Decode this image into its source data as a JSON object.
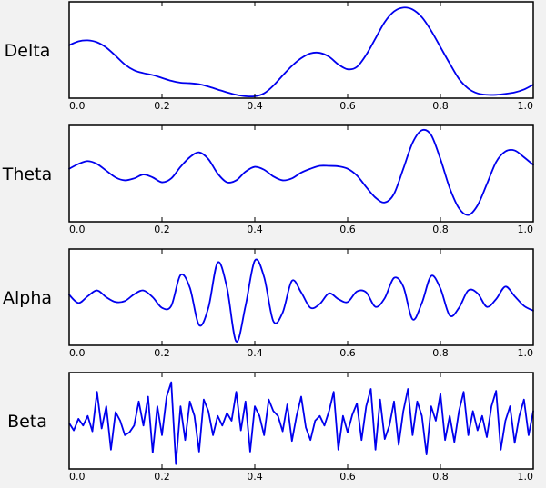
{
  "chart_data": [
    {
      "type": "line",
      "label": "Delta",
      "xlim": [
        0.0,
        1.0
      ],
      "ylim": [
        -1.0,
        1.0
      ],
      "xticks": [
        "0.0",
        "0.2",
        "0.4",
        "0.6",
        "0.8",
        "1.0"
      ],
      "yticks": [],
      "series": [
        {
          "color": "#0000ee",
          "x": [
            0.0,
            0.02,
            0.04,
            0.06,
            0.08,
            0.1,
            0.12,
            0.14,
            0.16,
            0.18,
            0.2,
            0.22,
            0.24,
            0.26,
            0.28,
            0.3,
            0.32,
            0.34,
            0.36,
            0.38,
            0.4,
            0.42,
            0.44,
            0.46,
            0.48,
            0.5,
            0.52,
            0.54,
            0.56,
            0.58,
            0.6,
            0.62,
            0.64,
            0.66,
            0.68,
            0.7,
            0.72,
            0.74,
            0.76,
            0.78,
            0.8,
            0.82,
            0.84,
            0.86,
            0.88,
            0.9,
            0.92,
            0.94,
            0.96,
            0.98,
            1.0
          ],
          "y": [
            0.1,
            0.18,
            0.2,
            0.16,
            0.05,
            -0.12,
            -0.3,
            -0.42,
            -0.48,
            -0.52,
            -0.58,
            -0.64,
            -0.68,
            -0.69,
            -0.71,
            -0.76,
            -0.82,
            -0.88,
            -0.93,
            -0.96,
            -0.96,
            -0.9,
            -0.74,
            -0.53,
            -0.33,
            -0.17,
            -0.07,
            -0.06,
            -0.14,
            -0.3,
            -0.4,
            -0.35,
            -0.1,
            0.24,
            0.58,
            0.8,
            0.88,
            0.84,
            0.68,
            0.4,
            0.06,
            -0.28,
            -0.6,
            -0.8,
            -0.9,
            -0.93,
            -0.93,
            -0.91,
            -0.88,
            -0.82,
            -0.72
          ]
        }
      ]
    },
    {
      "type": "line",
      "label": "Theta",
      "xlim": [
        0.0,
        1.0
      ],
      "ylim": [
        -1.0,
        1.0
      ],
      "xticks": [
        "0.0",
        "0.2",
        "0.4",
        "0.6",
        "0.8",
        "1.0"
      ],
      "yticks": [],
      "series": [
        {
          "color": "#0000ee",
          "x": [
            0.0,
            0.02,
            0.04,
            0.06,
            0.08,
            0.1,
            0.12,
            0.14,
            0.16,
            0.18,
            0.2,
            0.22,
            0.24,
            0.26,
            0.28,
            0.3,
            0.32,
            0.34,
            0.36,
            0.38,
            0.4,
            0.42,
            0.44,
            0.46,
            0.48,
            0.5,
            0.52,
            0.54,
            0.56,
            0.58,
            0.6,
            0.62,
            0.64,
            0.66,
            0.68,
            0.7,
            0.72,
            0.74,
            0.76,
            0.78,
            0.8,
            0.82,
            0.84,
            0.86,
            0.88,
            0.9,
            0.92,
            0.94,
            0.96,
            0.98,
            1.0
          ],
          "y": [
            0.1,
            0.2,
            0.26,
            0.2,
            0.06,
            -0.08,
            -0.14,
            -0.1,
            -0.02,
            -0.08,
            -0.18,
            -0.1,
            0.14,
            0.34,
            0.44,
            0.3,
            0.0,
            -0.18,
            -0.14,
            0.04,
            0.14,
            0.08,
            -0.06,
            -0.14,
            -0.1,
            0.02,
            0.1,
            0.16,
            0.16,
            0.15,
            0.1,
            -0.04,
            -0.28,
            -0.5,
            -0.6,
            -0.42,
            0.1,
            0.64,
            0.9,
            0.8,
            0.3,
            -0.3,
            -0.72,
            -0.86,
            -0.66,
            -0.22,
            0.24,
            0.46,
            0.48,
            0.34,
            0.18
          ]
        }
      ]
    },
    {
      "type": "line",
      "label": "Alpha",
      "xlim": [
        0.0,
        1.0
      ],
      "ylim": [
        -1.0,
        1.0
      ],
      "xticks": [
        "0.0",
        "0.2",
        "0.4",
        "0.6",
        "0.8",
        "1.0"
      ],
      "yticks": [],
      "series": [
        {
          "color": "#0000ee",
          "x": [
            0.0,
            0.02,
            0.04,
            0.06,
            0.08,
            0.1,
            0.12,
            0.14,
            0.16,
            0.18,
            0.2,
            0.22,
            0.24,
            0.26,
            0.28,
            0.3,
            0.32,
            0.34,
            0.36,
            0.38,
            0.4,
            0.42,
            0.44,
            0.46,
            0.48,
            0.5,
            0.52,
            0.54,
            0.56,
            0.58,
            0.6,
            0.62,
            0.64,
            0.66,
            0.68,
            0.7,
            0.72,
            0.74,
            0.76,
            0.78,
            0.8,
            0.82,
            0.84,
            0.86,
            0.88,
            0.9,
            0.92,
            0.94,
            0.96,
            0.98,
            1.0
          ],
          "y": [
            0.05,
            -0.12,
            0.02,
            0.14,
            0.0,
            -0.1,
            -0.08,
            0.06,
            0.14,
            0.0,
            -0.22,
            -0.18,
            0.46,
            0.2,
            -0.58,
            -0.22,
            0.72,
            0.2,
            -0.92,
            -0.18,
            0.76,
            0.42,
            -0.5,
            -0.32,
            0.34,
            0.1,
            -0.22,
            -0.14,
            0.08,
            -0.04,
            -0.1,
            0.12,
            0.1,
            -0.2,
            -0.02,
            0.4,
            0.22,
            -0.46,
            -0.12,
            0.44,
            0.18,
            -0.38,
            -0.22,
            0.14,
            0.08,
            -0.2,
            -0.04,
            0.22,
            0.02,
            -0.18,
            -0.28
          ]
        }
      ]
    },
    {
      "type": "line",
      "label": "Beta",
      "xlim": [
        0.0,
        1.0
      ],
      "ylim": [
        -1.0,
        1.0
      ],
      "xticks": [
        "0.0",
        "0.2",
        "0.4",
        "0.6",
        "0.8",
        "1.0"
      ],
      "yticks": [],
      "series": [
        {
          "color": "#0000ee",
          "x": [
            0.0,
            0.01,
            0.02,
            0.03,
            0.04,
            0.05,
            0.06,
            0.07,
            0.08,
            0.09,
            0.1,
            0.11,
            0.12,
            0.13,
            0.14,
            0.15,
            0.16,
            0.17,
            0.18,
            0.19,
            0.2,
            0.21,
            0.22,
            0.23,
            0.24,
            0.25,
            0.26,
            0.27,
            0.28,
            0.29,
            0.3,
            0.31,
            0.32,
            0.33,
            0.34,
            0.35,
            0.36,
            0.37,
            0.38,
            0.39,
            0.4,
            0.41,
            0.42,
            0.43,
            0.44,
            0.45,
            0.46,
            0.47,
            0.48,
            0.49,
            0.5,
            0.51,
            0.52,
            0.53,
            0.54,
            0.55,
            0.56,
            0.57,
            0.58,
            0.59,
            0.6,
            0.61,
            0.62,
            0.63,
            0.64,
            0.65,
            0.66,
            0.67,
            0.68,
            0.69,
            0.7,
            0.71,
            0.72,
            0.73,
            0.74,
            0.75,
            0.76,
            0.77,
            0.78,
            0.79,
            0.8,
            0.81,
            0.82,
            0.83,
            0.84,
            0.85,
            0.86,
            0.87,
            0.88,
            0.89,
            0.9,
            0.91,
            0.92,
            0.93,
            0.94,
            0.95,
            0.96,
            0.97,
            0.98,
            0.99,
            1.0
          ],
          "y": [
            -0.05,
            -0.2,
            0.04,
            -0.1,
            0.1,
            -0.22,
            0.6,
            -0.16,
            0.3,
            -0.6,
            0.18,
            0.0,
            -0.3,
            -0.24,
            -0.1,
            0.4,
            -0.1,
            0.5,
            -0.66,
            0.3,
            -0.3,
            0.5,
            0.8,
            -0.9,
            0.3,
            -0.4,
            0.4,
            0.1,
            -0.64,
            0.44,
            0.2,
            -0.3,
            0.1,
            -0.1,
            0.16,
            0.0,
            0.6,
            -0.2,
            0.4,
            -0.64,
            0.3,
            0.1,
            -0.3,
            0.44,
            0.2,
            0.1,
            -0.22,
            0.34,
            -0.42,
            0.1,
            0.5,
            -0.14,
            -0.4,
            0.0,
            0.1,
            -0.1,
            0.2,
            0.6,
            -0.6,
            0.1,
            -0.24,
            0.12,
            0.36,
            -0.4,
            0.3,
            0.66,
            -0.6,
            0.44,
            -0.38,
            -0.1,
            0.4,
            -0.5,
            0.2,
            0.66,
            -0.3,
            0.4,
            0.1,
            -0.7,
            0.3,
            0.0,
            0.56,
            -0.4,
            0.1,
            -0.44,
            0.2,
            0.6,
            -0.3,
            0.2,
            -0.2,
            0.1,
            -0.34,
            0.3,
            0.62,
            -0.6,
            0.0,
            0.3,
            -0.46,
            0.1,
            0.44,
            -0.3,
            0.2
          ]
        }
      ]
    }
  ]
}
